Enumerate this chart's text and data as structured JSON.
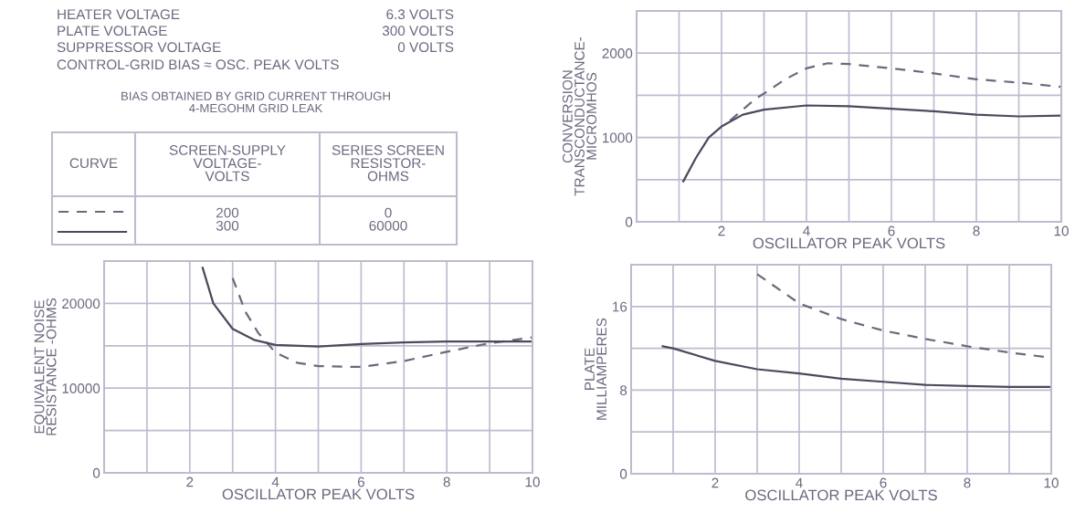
{
  "chart_data": [
    {
      "type": "other",
      "annotations": [
        "HEATER VOLTAGE",
        "6.3 VOLTS",
        "PLATE VOLTAGE",
        "300 VOLTS",
        "SUPPRESSOR VOLTAGE",
        "0 VOLTS",
        "CONTROL-GRID BIAS ≈ OSC. PEAK VOLTS",
        "BIAS OBTAINED BY GRID CURRENT THROUGH\n4-MEGOHM GRID LEAK",
        "CURVE",
        "SCREEN-SUPPLY\nVOLTAGE-\nVOLTS",
        "SERIES SCREEN\nRESISTOR-\nOHMS",
        "200\n300",
        "0\n60000"
      ]
    },
    {
      "type": "line",
      "xlabel": "OSCILLATOR PEAK VOLTS",
      "ylabel": "CONVERSION\nTRANSCONDUCTANCE-\nMICROMHOS",
      "xlim": [
        0,
        10
      ],
      "ylim": [
        0,
        2500
      ],
      "xticks": [
        {
          "value": 1,
          "label": null
        },
        2,
        {
          "value": 3,
          "label": null
        },
        4,
        {
          "value": 5,
          "label": null
        },
        6,
        {
          "value": 7,
          "label": null
        },
        8,
        {
          "value": 9,
          "label": null
        },
        10
      ],
      "yticks": [
        0,
        {
          "value": 500,
          "label": null
        },
        1000,
        {
          "value": 1500,
          "label": null
        },
        2000
      ],
      "grid": true,
      "marker": "none",
      "series": [
        {
          "color": "#6a6a7c",
          "line_style": "dashed",
          "x": [
            2.2,
            2.8,
            3,
            3.5,
            4,
            4.5,
            5,
            6,
            7,
            8,
            9,
            10
          ],
          "values": [
            1200,
            1460,
            1520,
            1690,
            1820,
            1880,
            1870,
            1820,
            1760,
            1690,
            1650,
            1600
          ]
        },
        {
          "color": "#4a4a5c",
          "line_style": "solid",
          "x": [
            1.1,
            1.4,
            1.7,
            2,
            2.5,
            3,
            4,
            5,
            6,
            7,
            8,
            9,
            10
          ],
          "values": [
            480,
            760,
            1000,
            1130,
            1270,
            1330,
            1380,
            1370,
            1340,
            1310,
            1270,
            1250,
            1260
          ]
        }
      ]
    },
    {
      "type": "line",
      "xlabel": "OSCILLATOR PEAK VOLTS",
      "ylabel": "EQUIVALENT NOISE\nRESISTANCE -OHMS",
      "xlim": [
        0,
        10
      ],
      "ylim": [
        0,
        25000
      ],
      "xticks": [
        {
          "value": 1,
          "label": null
        },
        2,
        {
          "value": 3,
          "label": null
        },
        4,
        {
          "value": 5,
          "label": null
        },
        6,
        {
          "value": 7,
          "label": null
        },
        8,
        {
          "value": 9,
          "label": null
        },
        10
      ],
      "yticks": [
        0,
        {
          "value": 5000,
          "label": null
        },
        10000,
        {
          "value": 15000,
          "label": null
        },
        20000
      ],
      "grid": true,
      "marker": "none",
      "series": [
        {
          "color": "#6a6a7c",
          "line_style": "dashed",
          "x": [
            3,
            3.3,
            3.6,
            4,
            4.5,
            5,
            6,
            7,
            8,
            9,
            10
          ],
          "values": [
            23000,
            19000,
            16500,
            14200,
            13000,
            12600,
            12500,
            13200,
            14300,
            15300,
            16000
          ]
        },
        {
          "color": "#4a4a5c",
          "line_style": "solid",
          "x": [
            2.3,
            2.55,
            3,
            3.5,
            4,
            5,
            6,
            7,
            8,
            9,
            10
          ],
          "values": [
            24200,
            20000,
            17000,
            15700,
            15100,
            14900,
            15200,
            15400,
            15500,
            15500,
            15500
          ]
        }
      ]
    },
    {
      "type": "line",
      "xlabel": "OSCILLATOR PEAK VOLTS",
      "ylabel": "PLATE\nMILLIAMPERES",
      "xlim": [
        0,
        10
      ],
      "ylim": [
        0,
        20
      ],
      "xticks": [
        {
          "value": 1,
          "label": null
        },
        2,
        {
          "value": 3,
          "label": null
        },
        4,
        {
          "value": 5,
          "label": null
        },
        6,
        {
          "value": 7,
          "label": null
        },
        8,
        {
          "value": 9,
          "label": null
        },
        10
      ],
      "yticks": [
        0,
        {
          "value": 4,
          "label": null
        },
        8,
        {
          "value": 12,
          "label": null
        },
        16
      ],
      "grid": true,
      "marker": "none",
      "series": [
        {
          "color": "#6a6a7c",
          "line_style": "dashed",
          "x": [
            3,
            4,
            5,
            6,
            7,
            8,
            9,
            10
          ],
          "values": [
            19.1,
            16.3,
            14.8,
            13.7,
            12.9,
            12.2,
            11.6,
            11.1
          ]
        },
        {
          "color": "#4a4a5c",
          "line_style": "solid",
          "x": [
            0.75,
            1,
            2,
            3,
            4,
            5,
            6,
            7,
            8,
            9,
            10
          ],
          "values": [
            12.2,
            12,
            10.8,
            10,
            9.6,
            9.1,
            8.8,
            8.5,
            8.4,
            8.3,
            8.3
          ]
        }
      ]
    }
  ]
}
